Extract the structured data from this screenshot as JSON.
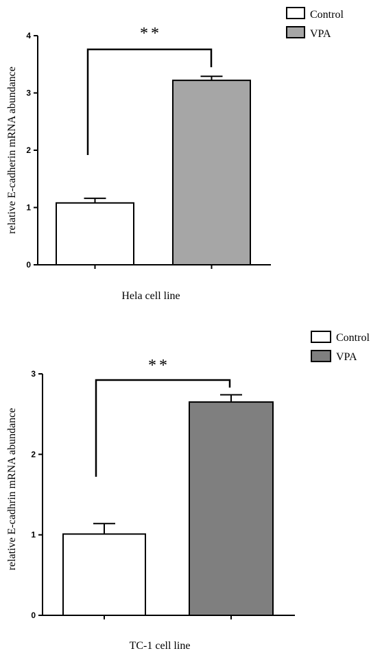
{
  "chart_data": [
    {
      "type": "bar",
      "categories": [
        "Control",
        "VPA"
      ],
      "values": [
        1.08,
        3.22
      ],
      "error": [
        0.08,
        0.07
      ],
      "colors": [
        "#ffffff",
        "#a6a6a6"
      ],
      "title": "",
      "xlabel": "Hela cell line",
      "ylabel": "relative E-cadherin mRNA abundance",
      "ylim": [
        0,
        4
      ],
      "yticks": [
        "0",
        "1",
        "2",
        "3",
        "4"
      ],
      "significance": "**",
      "legend": [
        {
          "label": "Control",
          "color": "#ffffff"
        },
        {
          "label": "VPA",
          "color": "#a6a6a6"
        }
      ],
      "legend_position": "top-right",
      "grid": false
    },
    {
      "type": "bar",
      "categories": [
        "Control",
        "VPA"
      ],
      "values": [
        1.01,
        2.65
      ],
      "error": [
        0.13,
        0.09
      ],
      "colors": [
        "#ffffff",
        "#7f7f7f"
      ],
      "title": "",
      "xlabel": "TC-1 cell line",
      "ylabel": "relative E-cadhrin mRNA abundance",
      "ylim": [
        0,
        3
      ],
      "yticks": [
        "0",
        "1",
        "2",
        "3"
      ],
      "significance": "**",
      "legend": [
        {
          "label": "Control",
          "color": "#ffffff"
        },
        {
          "label": "VPA",
          "color": "#7f7f7f"
        }
      ],
      "legend_position": "top-right",
      "grid": false
    }
  ]
}
